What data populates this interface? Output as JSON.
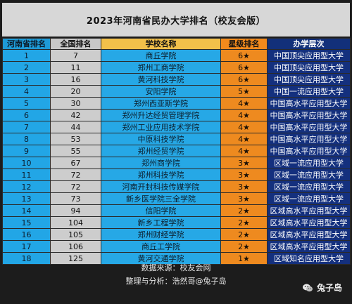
{
  "title": "2023年河南省民办大学排名（校友会版）",
  "headers": {
    "province_rank": "河南省排名",
    "national_rank": "全国排名",
    "school_name": "学校名称",
    "star_rank": "星级排名",
    "level": "办学层次"
  },
  "rows": [
    {
      "province_rank": "1",
      "national_rank": "7",
      "school_name": "商丘学院",
      "star_rank": "6★",
      "level": "中国顶尖应用型大学"
    },
    {
      "province_rank": "2",
      "national_rank": "11",
      "school_name": "郑州工商学院",
      "star_rank": "6★",
      "level": "中国顶尖应用型大学"
    },
    {
      "province_rank": "3",
      "national_rank": "16",
      "school_name": "黄河科技学院",
      "star_rank": "6★",
      "level": "中国顶尖应用型大学"
    },
    {
      "province_rank": "4",
      "national_rank": "20",
      "school_name": "安阳学院",
      "star_rank": "5★",
      "level": "中国一流应用型大学"
    },
    {
      "province_rank": "5",
      "national_rank": "30",
      "school_name": "郑州西亚斯学院",
      "star_rank": "4★",
      "level": "中国高水平应用型大学"
    },
    {
      "province_rank": "6",
      "national_rank": "42",
      "school_name": "郑州升达经贸管理学院",
      "star_rank": "4★",
      "level": "中国高水平应用型大学"
    },
    {
      "province_rank": "7",
      "national_rank": "44",
      "school_name": "郑州工业应用技术学院",
      "star_rank": "4★",
      "level": "中国高水平应用型大学"
    },
    {
      "province_rank": "8",
      "national_rank": "53",
      "school_name": "中原科技学院",
      "star_rank": "4★",
      "level": "中国高水平应用型大学"
    },
    {
      "province_rank": "9",
      "national_rank": "55",
      "school_name": "郑州经贸学院",
      "star_rank": "4★",
      "level": "中国高水平应用型大学"
    },
    {
      "province_rank": "10",
      "national_rank": "67",
      "school_name": "郑州商学院",
      "star_rank": "3★",
      "level": "区域一流应用型大学"
    },
    {
      "province_rank": "11",
      "national_rank": "72",
      "school_name": "郑州科技学院",
      "star_rank": "3★",
      "level": "区域一流应用型大学"
    },
    {
      "province_rank": "12",
      "national_rank": "72",
      "school_name": "河南开封科技传媒学院",
      "star_rank": "3★",
      "level": "区域一流应用型大学"
    },
    {
      "province_rank": "13",
      "national_rank": "73",
      "school_name": "新乡医学院三全学院",
      "star_rank": "3★",
      "level": "区域一流应用型大学"
    },
    {
      "province_rank": "14",
      "national_rank": "94",
      "school_name": "信阳学院",
      "star_rank": "2★",
      "level": "区域高水平应用型大学"
    },
    {
      "province_rank": "15",
      "national_rank": "104",
      "school_name": "新乡工程学院",
      "star_rank": "2★",
      "level": "区域高水平应用型大学"
    },
    {
      "province_rank": "16",
      "national_rank": "105",
      "school_name": "郑州财经学院",
      "star_rank": "2★",
      "level": "区域高水平应用型大学"
    },
    {
      "province_rank": "17",
      "national_rank": "106",
      "school_name": "商丘工学院",
      "star_rank": "2★",
      "level": "区域高水平应用型大学"
    },
    {
      "province_rank": "18",
      "national_rank": "125",
      "school_name": "黄河交通学院",
      "star_rank": "1★",
      "level": "区域知名应用型大学"
    }
  ],
  "footer": {
    "source": "数据来源：校友会网",
    "analysis": "整理与分析：浩然哥@兔子岛",
    "brand": "兔子岛"
  },
  "icons": {
    "brand_logo": "wechat-icon"
  },
  "colors": {
    "province_col": "#22a6e6",
    "national_col": "#cdcdcd",
    "name_col": "#26a8e6",
    "star_col": "#ee8a1f",
    "level_col": "#14307e",
    "header_name": "#f2c04a"
  }
}
